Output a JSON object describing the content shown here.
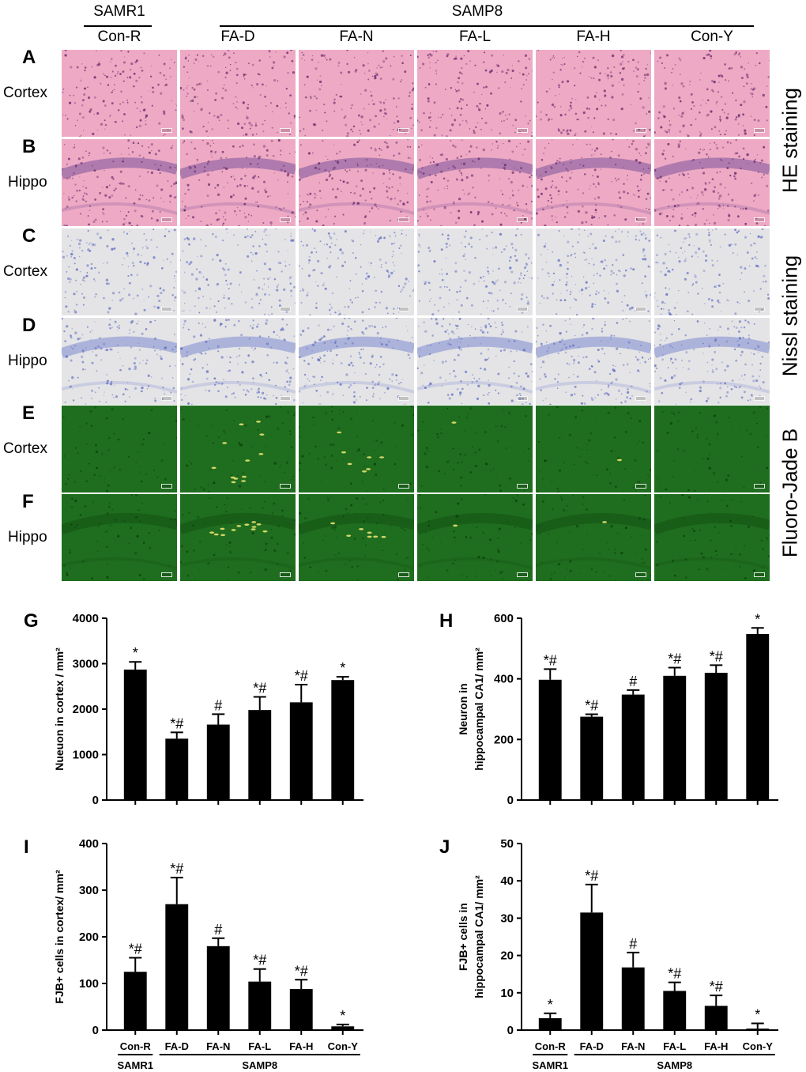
{
  "header": {
    "samr1": "SAMR1",
    "samp8": "SAMP8",
    "columns": [
      "Con-R",
      "FA-D",
      "FA-N",
      "FA-L",
      "FA-H",
      "Con-Y"
    ]
  },
  "rows": [
    {
      "letter": "A",
      "region": "Cortex",
      "stain": "he",
      "variant": "cortex"
    },
    {
      "letter": "B",
      "region": "Hippo",
      "stain": "he",
      "variant": "hippo"
    },
    {
      "letter": "C",
      "region": "Cortex",
      "stain": "nissl",
      "variant": "cortex"
    },
    {
      "letter": "D",
      "region": "Hippo",
      "stain": "nissl",
      "variant": "hippo"
    },
    {
      "letter": "E",
      "region": "Cortex",
      "stain": "fjb",
      "variant": "cortex"
    },
    {
      "letter": "F",
      "region": "Hippo",
      "stain": "fjb",
      "variant": "hippo"
    }
  ],
  "side_labels": {
    "he": "HE staining",
    "nissl": "Nissl staining",
    "fjb": "Fluoro-Jade B"
  },
  "stain_colors": {
    "he": {
      "bg": "#eeaac4",
      "cell": "#6a2d6e",
      "layer": "#9a6aa6"
    },
    "nissl": {
      "bg": "#e4e4e6",
      "cell": "#6672c2",
      "layer": "#9aa3d6"
    },
    "fjb": {
      "bg": "#1f6e1f",
      "cell": "#e8e070",
      "layer": "#175a17"
    }
  },
  "chart_data": [
    {
      "letter": "G",
      "type": "bar",
      "title": "",
      "ylabel_lines": [
        "Nueuon in cortex / mm²"
      ],
      "categories": [
        "Con-R",
        "FA-D",
        "FA-N",
        "FA-L",
        "FA-H",
        "Con-Y"
      ],
      "values": [
        2870,
        1350,
        1660,
        1980,
        2150,
        2640
      ],
      "errors": [
        170,
        140,
        230,
        290,
        390,
        70
      ],
      "annotations": [
        "*",
        "*#",
        "#",
        "*#",
        "*#",
        "*"
      ],
      "ylim": [
        0,
        4000
      ],
      "yticks": [
        0,
        1000,
        2000,
        3000,
        4000
      ],
      "show_xlabels": false
    },
    {
      "letter": "H",
      "type": "bar",
      "title": "",
      "ylabel_lines": [
        "Neuron in",
        "hippocampal CA1/ mm²"
      ],
      "categories": [
        "Con-R",
        "FA-D",
        "FA-N",
        "FA-L",
        "FA-H",
        "Con-Y"
      ],
      "values": [
        397,
        275,
        348,
        410,
        420,
        548
      ],
      "errors": [
        35,
        8,
        15,
        27,
        25,
        20
      ],
      "annotations": [
        "*#",
        "*#",
        "#",
        "*#",
        "*#",
        "*"
      ],
      "ylim": [
        0,
        600
      ],
      "yticks": [
        0,
        200,
        400,
        600
      ],
      "show_xlabels": false
    },
    {
      "letter": "I",
      "type": "bar",
      "title": "",
      "ylabel_lines": [
        "FJB+ cells in cortex/ mm²"
      ],
      "categories": [
        "Con-R",
        "FA-D",
        "FA-N",
        "FA-L",
        "FA-H",
        "Con-Y"
      ],
      "values": [
        125,
        270,
        180,
        104,
        88,
        8
      ],
      "errors": [
        30,
        57,
        17,
        27,
        20,
        4
      ],
      "annotations": [
        "*#",
        "*#",
        "#",
        "*#",
        "*#",
        "*"
      ],
      "ylim": [
        0,
        400
      ],
      "yticks": [
        0,
        100,
        200,
        300,
        400
      ],
      "show_xlabels": true,
      "groups": [
        {
          "label": "SAMR1",
          "from": 0,
          "to": 0
        },
        {
          "label": "SAMP8",
          "from": 1,
          "to": 5
        }
      ]
    },
    {
      "letter": "J",
      "type": "bar",
      "title": "",
      "ylabel_lines": [
        "FJB+ cells in",
        "hippocampal CA1/ mm²"
      ],
      "categories": [
        "Con-R",
        "FA-D",
        "FA-N",
        "FA-L",
        "FA-H",
        "Con-Y"
      ],
      "values": [
        3.2,
        31.5,
        16.8,
        10.5,
        6.5,
        0.4
      ],
      "errors": [
        1.3,
        7.5,
        4.0,
        2.3,
        2.8,
        1.4
      ],
      "annotations": [
        "*",
        "*#",
        "#",
        "*#",
        "*#",
        "*"
      ],
      "ylim": [
        0,
        50
      ],
      "yticks": [
        0,
        10,
        20,
        30,
        40,
        50
      ],
      "show_xlabels": true,
      "groups": [
        {
          "label": "SAMR1",
          "from": 0,
          "to": 0
        },
        {
          "label": "SAMP8",
          "from": 1,
          "to": 5
        }
      ]
    }
  ]
}
